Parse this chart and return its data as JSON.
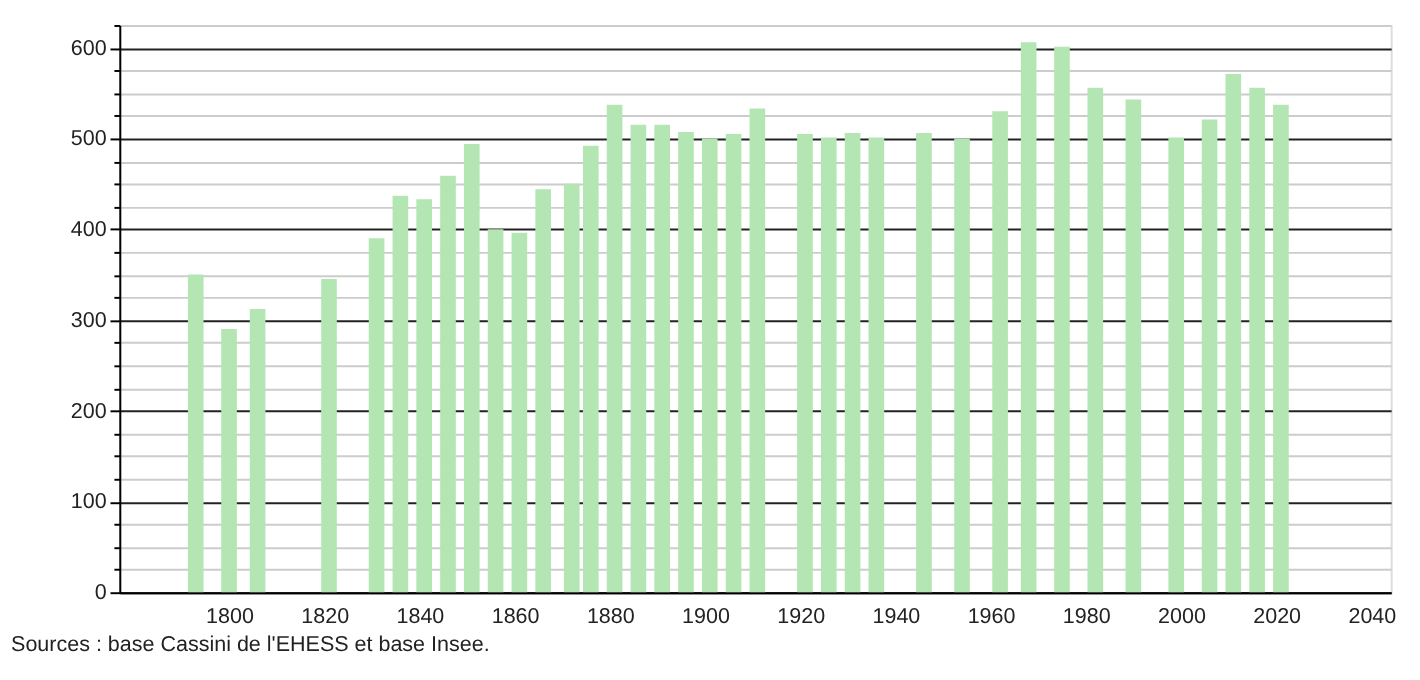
{
  "chart_data": {
    "type": "bar",
    "color": "#b3e6b3",
    "x": [
      1793,
      1800,
      1806,
      1821,
      1831,
      1836,
      1841,
      1846,
      1851,
      1856,
      1861,
      1866,
      1872,
      1876,
      1881,
      1886,
      1891,
      1896,
      1901,
      1906,
      1911,
      1921,
      1926,
      1931,
      1936,
      1946,
      1954,
      1962,
      1968,
      1975,
      1982,
      1990,
      1999,
      2006,
      2011,
      2016,
      2021
    ],
    "values": [
      350,
      290,
      312,
      345,
      390,
      437,
      433,
      459,
      494,
      400,
      396,
      444,
      450,
      492,
      537,
      515,
      515,
      507,
      500,
      505,
      533,
      505,
      501,
      506,
      501,
      506,
      500,
      530,
      606,
      601,
      556,
      543,
      501,
      521,
      571,
      556,
      537
    ],
    "xlim": [
      1779,
      2042
    ],
    "xticks": [
      1800,
      1820,
      1840,
      1860,
      1880,
      1900,
      1920,
      1940,
      1960,
      1980,
      2000,
      2020,
      2040
    ],
    "ylim": [
      0,
      625
    ],
    "yticks": [
      0,
      {
        "value": 25,
        "label": null
      },
      {
        "value": 50,
        "label": null
      },
      {
        "value": 75,
        "label": null
      },
      100,
      {
        "value": 125,
        "label": null
      },
      {
        "value": 150,
        "label": null
      },
      {
        "value": 175,
        "label": null
      },
      200,
      {
        "value": 225,
        "label": null
      },
      {
        "value": 250,
        "label": null
      },
      {
        "value": 275,
        "label": null
      },
      300,
      {
        "value": 325,
        "label": null
      },
      {
        "value": 350,
        "label": null
      },
      {
        "value": 375,
        "label": null
      },
      400,
      {
        "value": 425,
        "label": null
      },
      {
        "value": 450,
        "label": null
      },
      {
        "value": 475,
        "label": null
      },
      500,
      {
        "value": 525,
        "label": null
      },
      {
        "value": 550,
        "label": null
      },
      {
        "value": 575,
        "label": null
      },
      600,
      {
        "value": 625,
        "label": null
      }
    ],
    "grid": "y",
    "annotations": [
      "Sources : base Cassini de l'EHESS et base Insee."
    ]
  }
}
